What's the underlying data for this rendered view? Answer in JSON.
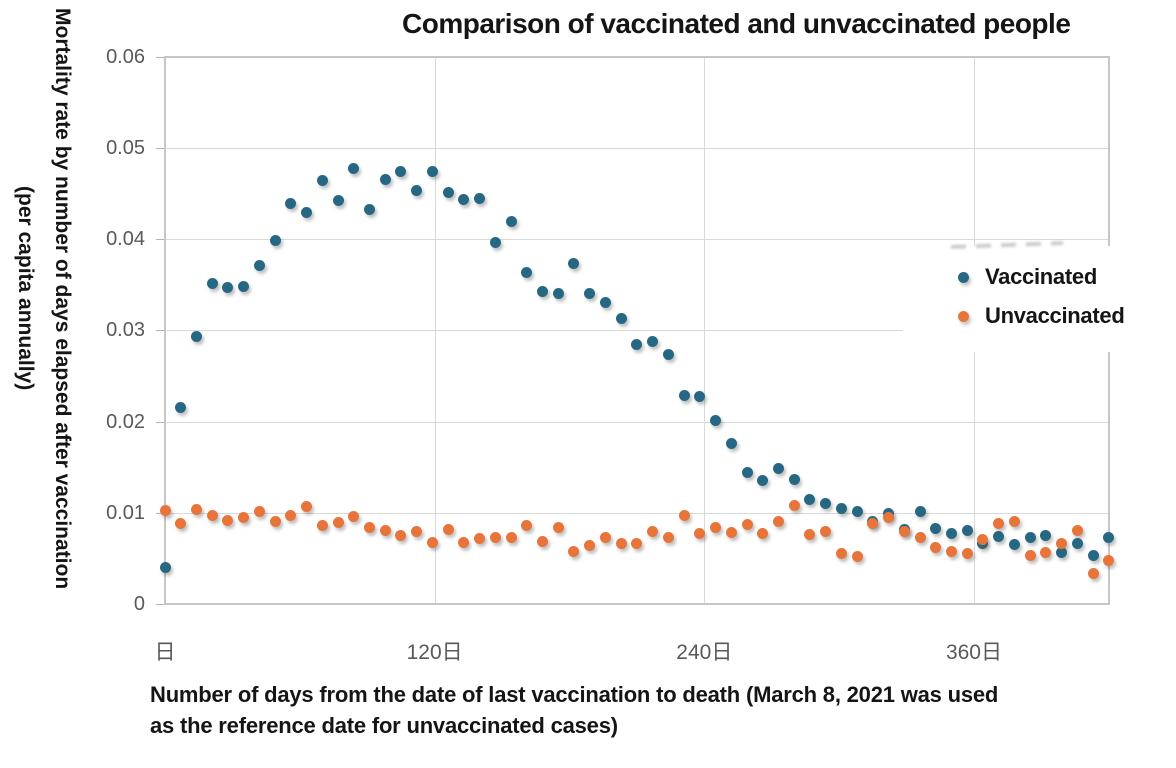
{
  "title": "Comparison of vaccinated and unvaccinated people",
  "y_axis": {
    "title_line1": "Mortality rate by number of days elapsed after vaccination",
    "title_line2": "(per capita annually)",
    "ticks": [
      {
        "label": "0.06",
        "value": 0.06
      },
      {
        "label": "0.05",
        "value": 0.05
      },
      {
        "label": "0.04",
        "value": 0.04
      },
      {
        "label": "0.03",
        "value": 0.03
      },
      {
        "label": "0.02",
        "value": 0.02
      },
      {
        "label": "0.01",
        "value": 0.01
      },
      {
        "label": "0",
        "value": 0
      }
    ]
  },
  "x_axis": {
    "title_line1": "Number of days from the date of last vaccination to death (March 8, 2021 was used",
    "title_line2": "as the reference date for unvaccinated cases)",
    "ticks": [
      {
        "label": "日",
        "day": 0
      },
      {
        "label": "120日",
        "day": 120
      },
      {
        "label": "240日",
        "day": 240
      },
      {
        "label": "360日",
        "day": 360
      }
    ]
  },
  "legend": {
    "items": [
      {
        "label": "Vaccinated",
        "color": "#266884"
      },
      {
        "label": "Unvaccinated",
        "color": "#e8743a"
      }
    ]
  },
  "chart_data": {
    "type": "scatter",
    "title": "Comparison of vaccinated and unvaccinated people",
    "xlabel": "Number of days from the date of last vaccination to death (March 8, 2021 was used as the reference date for unvaccinated cases)",
    "ylabel": "Mortality rate by number of days elapsed after vaccination (per capita annually)",
    "ylim": [
      0,
      0.06
    ],
    "xlim_days": [
      0,
      420
    ],
    "x_gridlines_days": [
      120,
      240,
      360
    ],
    "y_gridlines": [
      0.01,
      0.02,
      0.03,
      0.04,
      0.05,
      0.06
    ],
    "grid": true,
    "legend_position": "right-middle",
    "x": [
      0,
      7,
      14,
      21,
      28,
      35,
      42,
      49,
      56,
      63,
      70,
      77,
      84,
      91,
      98,
      105,
      112,
      119,
      126,
      133,
      140,
      147,
      154,
      161,
      168,
      175,
      182,
      189,
      196,
      203,
      210,
      217,
      224,
      231,
      238,
      245,
      252,
      259,
      266,
      273,
      280,
      287,
      294,
      301,
      308,
      315,
      322,
      329,
      336,
      343,
      350,
      357,
      364,
      371,
      378,
      385,
      392,
      399,
      406,
      413,
      420
    ],
    "series": [
      {
        "name": "Vaccinated",
        "color": "#266884",
        "values": [
          0.004,
          0.0215,
          0.0293,
          0.0352,
          0.0347,
          0.0348,
          0.0371,
          0.0399,
          0.0439,
          0.0429,
          0.0464,
          0.0443,
          0.0478,
          0.0433,
          0.0466,
          0.0474,
          0.0454,
          0.0474,
          0.0451,
          0.0444,
          0.0445,
          0.0396,
          0.042,
          0.0364,
          0.0343,
          0.0341,
          0.0373,
          0.0341,
          0.0331,
          0.0313,
          0.0285,
          0.0288,
          0.0274,
          0.0229,
          0.0228,
          0.0201,
          0.0176,
          0.0144,
          0.0136,
          0.0149,
          0.0137,
          0.0115,
          0.011,
          0.0105,
          0.0101,
          0.009,
          0.0099,
          0.0082,
          0.0101,
          0.0083,
          0.0077,
          0.0081,
          0.0066,
          0.0074,
          0.0065,
          0.0073,
          0.0075,
          0.0056,
          0.0066,
          0.0053,
          0.0073
        ]
      },
      {
        "name": "Unvaccinated",
        "color": "#e8743a",
        "values": [
          0.0103,
          0.0088,
          0.0104,
          0.0097,
          0.0092,
          0.0095,
          0.0101,
          0.009,
          0.0097,
          0.0107,
          0.0086,
          0.0089,
          0.0096,
          0.0084,
          0.0081,
          0.0075,
          0.008,
          0.0067,
          0.0082,
          0.0067,
          0.0072,
          0.0073,
          0.0073,
          0.0086,
          0.0069,
          0.0084,
          0.0058,
          0.0064,
          0.0073,
          0.0066,
          0.0066,
          0.0079,
          0.0073,
          0.0097,
          0.0077,
          0.0084,
          0.0078,
          0.0087,
          0.0077,
          0.0091,
          0.0108,
          0.0076,
          0.0079,
          0.0055,
          0.0052,
          0.0088,
          0.0095,
          0.008,
          0.0073,
          0.0062,
          0.0058,
          0.0055,
          0.0071,
          0.0088,
          0.009,
          0.0053,
          0.0056,
          0.0066,
          0.0081,
          0.0033,
          0.0048
        ]
      }
    ]
  }
}
